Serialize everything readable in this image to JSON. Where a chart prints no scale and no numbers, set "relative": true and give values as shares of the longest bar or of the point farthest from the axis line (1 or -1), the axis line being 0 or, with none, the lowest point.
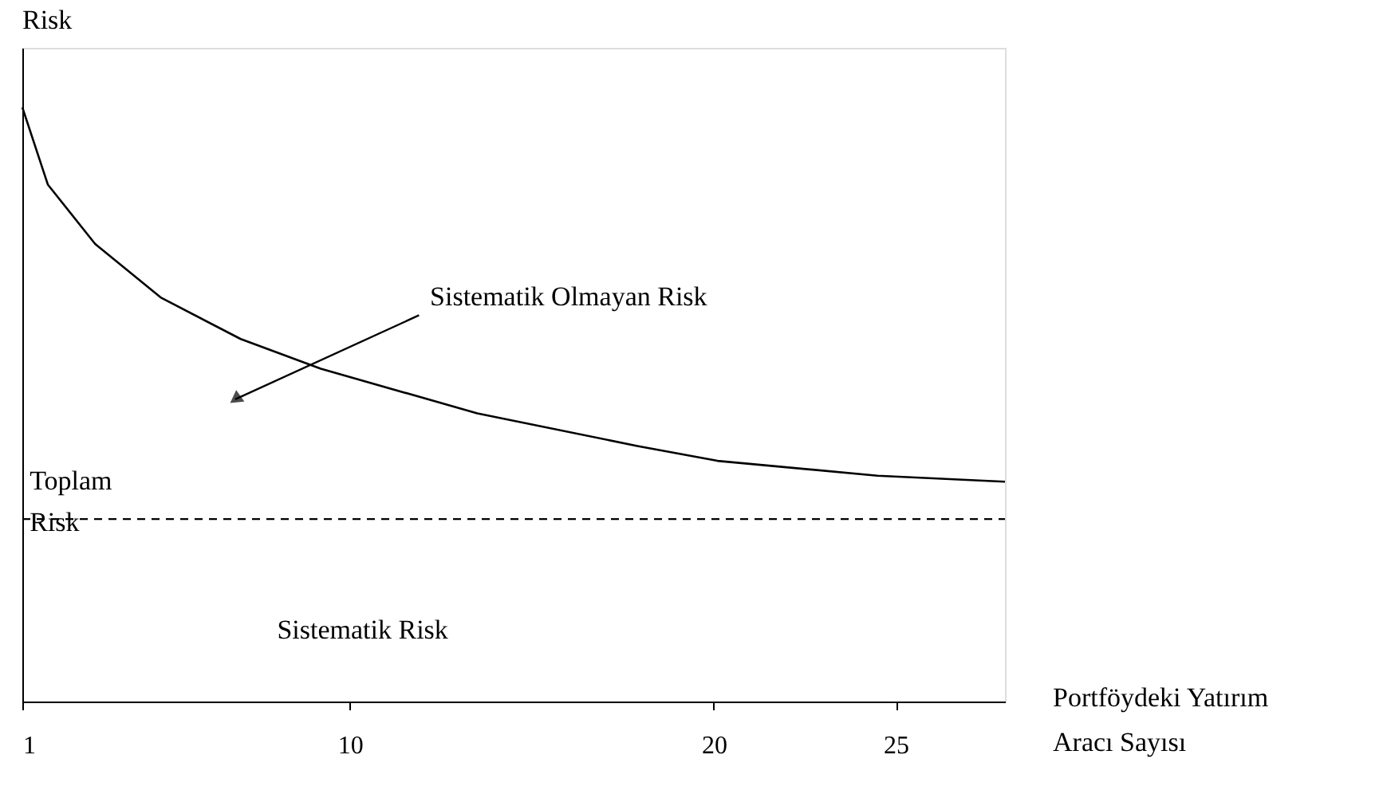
{
  "chart_data": {
    "type": "line",
    "relative": true,
    "ylabel": "Risk",
    "xlabel": "Portföydeki Yatırım Aracı Sayısı",
    "x": [
      1,
      1.7,
      3.0,
      4.8,
      7.0,
      9.2,
      13.5,
      17.9,
      20.1,
      24.5,
      28
    ],
    "series": [
      {
        "color": "#000000",
        "values": [
          1.0,
          0.87,
          0.77,
          0.68,
          0.61,
          0.56,
          0.485,
          0.43,
          0.405,
          0.38,
          0.37
        ]
      }
    ],
    "xlim": [
      1,
      28
    ],
    "xticks": [
      1,
      10,
      20,
      25
    ],
    "ref_lines": [
      {
        "axis": "y",
        "value": 0.307,
        "line_style": "dashed",
        "color": "#000000"
      }
    ],
    "annotations": [
      "Sistematik Olmayan Risk",
      "Toplam Risk",
      "Sistematik Risk"
    ],
    "grid": false,
    "marker": "none",
    "line_style": "solid"
  }
}
